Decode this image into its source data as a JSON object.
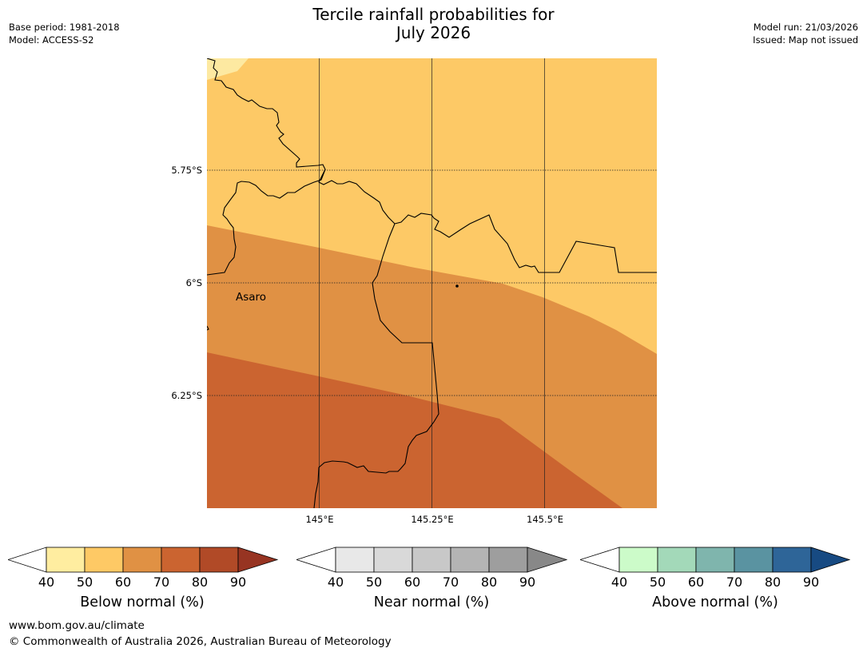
{
  "header": {
    "title_line1": "Tercile rainfall probabilities for",
    "title_line2": "July 2026",
    "base_period": "Base period: 1981-2018",
    "model": "Model: ACCESS-S2",
    "model_run": "Model run: 21/03/2026",
    "issued": "Issued: Map not issued"
  },
  "map": {
    "lat_labels": [
      "5.75°S",
      "6°S",
      "6.25°S"
    ],
    "lon_labels": [
      "145°E",
      "145.25°E",
      "145.5°E"
    ],
    "place": "Asaro",
    "zone_colors": {
      "40-50": "#fde9a1",
      "50-60": "#fdc966",
      "60-70": "#e09144",
      "70-80": "#cb6430"
    }
  },
  "colorbars": [
    {
      "title": "Below normal (%)",
      "ticks": [
        "40",
        "50",
        "60",
        "70",
        "80",
        "90"
      ],
      "colors": [
        "#ffeda0",
        "#fec965",
        "#e09144",
        "#cb6430",
        "#b14a27",
        "#973422"
      ]
    },
    {
      "title": "Near normal (%)",
      "ticks": [
        "40",
        "50",
        "60",
        "70",
        "80",
        "90"
      ],
      "colors": [
        "#e8e8e8",
        "#d9d9d9",
        "#c8c8c8",
        "#b4b4b4",
        "#9e9e9e",
        "#888888"
      ]
    },
    {
      "title": "Above normal (%)",
      "ticks": [
        "40",
        "50",
        "60",
        "70",
        "80",
        "90"
      ],
      "colors": [
        "#ccfbc9",
        "#a3d9b9",
        "#7fb5ad",
        "#5a93a1",
        "#2e6598",
        "#174a82"
      ]
    }
  ],
  "footer": {
    "url": "www.bom.gov.au/climate",
    "copyright": "© Commonwealth of Australia 2026, Australian Bureau of Meteorology"
  }
}
